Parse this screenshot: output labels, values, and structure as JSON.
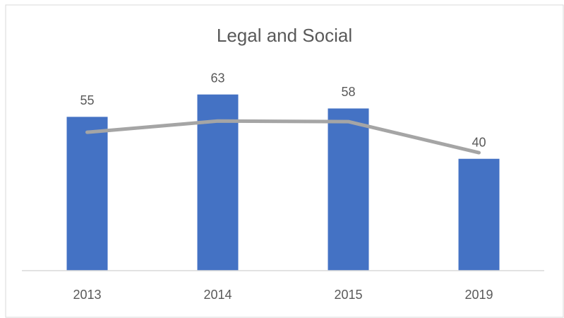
{
  "chart_data": {
    "type": "bar",
    "title": "Legal and Social",
    "categories": [
      "2013",
      "2014",
      "2015",
      "2019"
    ],
    "series": [
      {
        "type": "bar",
        "color": "#4472c4",
        "values": [
          55,
          63,
          58,
          40
        ]
      },
      {
        "type": "line",
        "color": "#a5a5a5",
        "values": [
          49.5,
          53.5,
          53.3,
          42.2
        ]
      }
    ],
    "ylim": [
      0,
      70
    ]
  }
}
